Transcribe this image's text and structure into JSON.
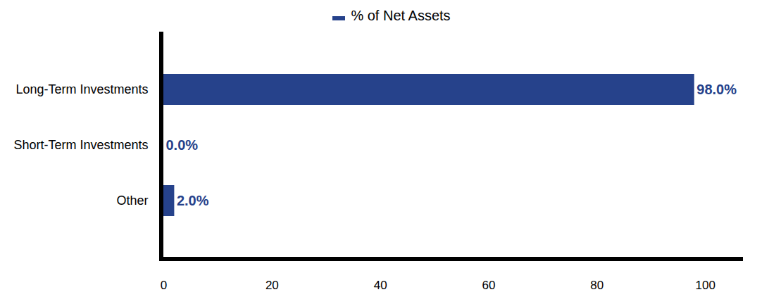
{
  "chart_data": {
    "type": "bar",
    "orientation": "horizontal",
    "categories": [
      "Long-Term Investments",
      "Short-Term Investments",
      "Other"
    ],
    "series": [
      {
        "name": "% of Net Assets",
        "color": "#26428b",
        "values": [
          98.0,
          0.0,
          2.0
        ],
        "value_labels": [
          "98.0%",
          "0.0%",
          "2.0%"
        ]
      }
    ],
    "xlim": [
      0,
      107
    ],
    "xticks": [
      0,
      20,
      40,
      60,
      80,
      100
    ],
    "data_labels": true,
    "legend": "top",
    "grid": false
  }
}
